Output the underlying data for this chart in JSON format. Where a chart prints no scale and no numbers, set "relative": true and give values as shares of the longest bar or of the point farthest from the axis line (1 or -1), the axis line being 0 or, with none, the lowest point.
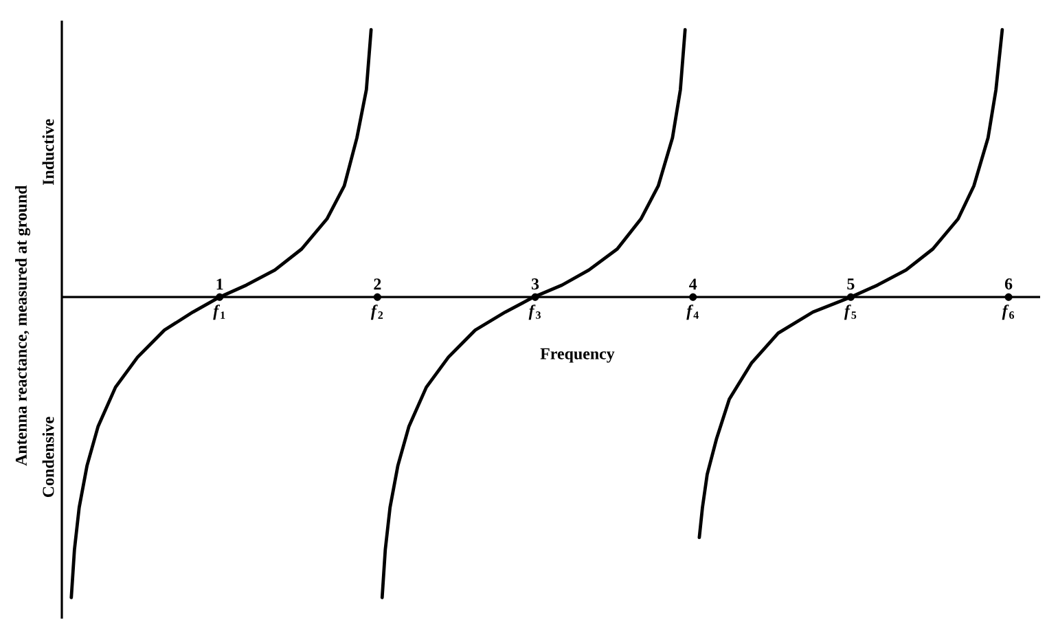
{
  "chart_data": {
    "type": "line",
    "relative": true,
    "xlabel": "Frequency",
    "ylabel": "Antenna reactance, measured at ground",
    "annotations": [
      "Inductive",
      "Condensive",
      {
        "text": "1",
        "x": 1,
        "y": 0
      },
      {
        "text": "2",
        "x": 2,
        "y": 0
      },
      {
        "text": "3",
        "x": 3,
        "y": 0
      },
      {
        "text": "4",
        "x": 4,
        "y": 0
      },
      {
        "text": "5",
        "x": 5,
        "y": 0
      },
      {
        "text": "6",
        "x": 6,
        "y": 0
      }
    ],
    "xlim": [
      0,
      6.2
    ],
    "xticks": [
      {
        "value": 1,
        "label": "*f*$_{1}$"
      },
      {
        "value": 2,
        "label": "*f*$_{2}$"
      },
      {
        "value": 3,
        "label": "*f*$_{3}$"
      },
      {
        "value": 4,
        "label": "*f*$_{4}$"
      },
      {
        "value": 5,
        "label": "*f*$_{5}$"
      },
      {
        "value": 6,
        "label": "*f*$_{6}$"
      }
    ],
    "line_style": "solid",
    "series": [
      {
        "color": "#000000",
        "x": [
          0.06,
          0.08,
          0.11,
          0.16,
          0.23,
          0.34,
          0.48,
          0.65,
          0.83,
          1.0,
          1.17,
          1.35,
          1.52,
          1.68,
          1.79,
          1.87,
          1.93,
          1.96
        ],
        "values": [
          -1.0,
          -0.84,
          -0.7,
          -0.56,
          -0.43,
          -0.3,
          -0.2,
          -0.11,
          -0.05,
          0,
          0.04,
          0.09,
          0.16,
          0.26,
          0.37,
          0.53,
          0.69,
          0.89
        ]
      },
      {
        "color": "#000000",
        "x": [
          2.03,
          2.05,
          2.08,
          2.13,
          2.2,
          2.31,
          2.45,
          2.62,
          2.81,
          2.99,
          3.17,
          3.34,
          3.52,
          3.67,
          3.78,
          3.87,
          3.92,
          3.95
        ],
        "values": [
          -1.0,
          -0.84,
          -0.7,
          -0.56,
          -0.43,
          -0.3,
          -0.2,
          -0.11,
          -0.05,
          0,
          0.04,
          0.09,
          0.16,
          0.26,
          0.37,
          0.53,
          0.69,
          0.89
        ]
      },
      {
        "color": "#000000",
        "x": [
          4.04,
          4.06,
          4.09,
          4.15,
          4.23,
          4.37,
          4.54,
          4.76,
          5.0,
          5.17,
          5.35,
          5.52,
          5.68,
          5.78,
          5.87,
          5.92,
          5.96
        ],
        "values": [
          -0.8,
          -0.7,
          -0.59,
          -0.47,
          -0.34,
          -0.22,
          -0.12,
          -0.05,
          0,
          0.04,
          0.09,
          0.16,
          0.26,
          0.37,
          0.53,
          0.69,
          0.89
        ]
      },
      {
        "type": "scatter",
        "marker": "circle",
        "color": "#000000",
        "x": [
          1,
          2,
          3,
          4,
          5,
          6
        ],
        "values": [
          0,
          0,
          0,
          0,
          0,
          0
        ]
      }
    ]
  }
}
